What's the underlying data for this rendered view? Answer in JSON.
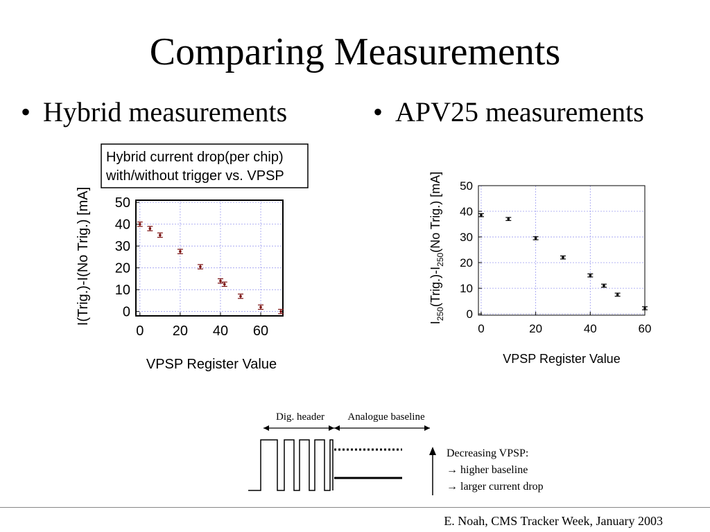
{
  "slide": {
    "title": "Comparing Measurements",
    "bullet_left": "Hybrid measurements",
    "bullet_right": "APV25 measurements",
    "bullet_glyph": "•",
    "footer": "E. Noah, CMS Tracker Week, January 2003"
  },
  "chart_data": [
    {
      "type": "scatter",
      "title": "Hybrid current drop(per chip) with/without trigger vs. VPSP",
      "title_lines": [
        "Hybrid current drop(per chip)",
        "with/without trigger vs. VPSP"
      ],
      "xlabel": "VPSP Register Value",
      "ylabel": "I(Trig.)-I(No Trig.) [mA]",
      "xlim": [
        -2,
        71
      ],
      "ylim": [
        -2,
        51
      ],
      "xticks": [
        0,
        20,
        40,
        60
      ],
      "yticks": [
        0,
        10,
        20,
        30,
        40,
        50
      ],
      "grid": true,
      "error_bars": true,
      "marker_color": "#7a1010",
      "series": [
        {
          "x": [
            0,
            5,
            10,
            20,
            30,
            40,
            42,
            50,
            60,
            70
          ],
          "y": [
            40,
            38,
            35,
            27.5,
            20.5,
            14,
            12.5,
            7,
            2,
            0
          ],
          "err": [
            1,
            1,
            1,
            1,
            1,
            1,
            1,
            1,
            1,
            1
          ]
        }
      ]
    },
    {
      "type": "scatter",
      "xlabel": "VPSP Register Value",
      "ylabel_parts": [
        "I",
        "250",
        "(Trig.)-I",
        "250",
        "(No Trig.) [mA]"
      ],
      "xlim": [
        -1,
        60
      ],
      "ylim": [
        -0.5,
        50
      ],
      "xticks": [
        0,
        20,
        40,
        60
      ],
      "yticks": [
        0,
        10,
        20,
        30,
        40,
        50
      ],
      "grid": true,
      "error_bars": true,
      "marker_color": "#000000",
      "series": [
        {
          "x": [
            0,
            10,
            20,
            30,
            40,
            45,
            50,
            60
          ],
          "y": [
            38.5,
            37,
            29.5,
            22,
            15,
            11,
            7.5,
            2.2
          ],
          "err": [
            0.6,
            0.6,
            0.6,
            0.6,
            0.6,
            0.6,
            0.6,
            0.6
          ]
        }
      ]
    }
  ],
  "diagram": {
    "label_header": "Dig. header",
    "label_baseline": "Analogue baseline",
    "note_lines": [
      "Decreasing VPSP:",
      "→ higher baseline",
      "→ larger current drop"
    ]
  }
}
